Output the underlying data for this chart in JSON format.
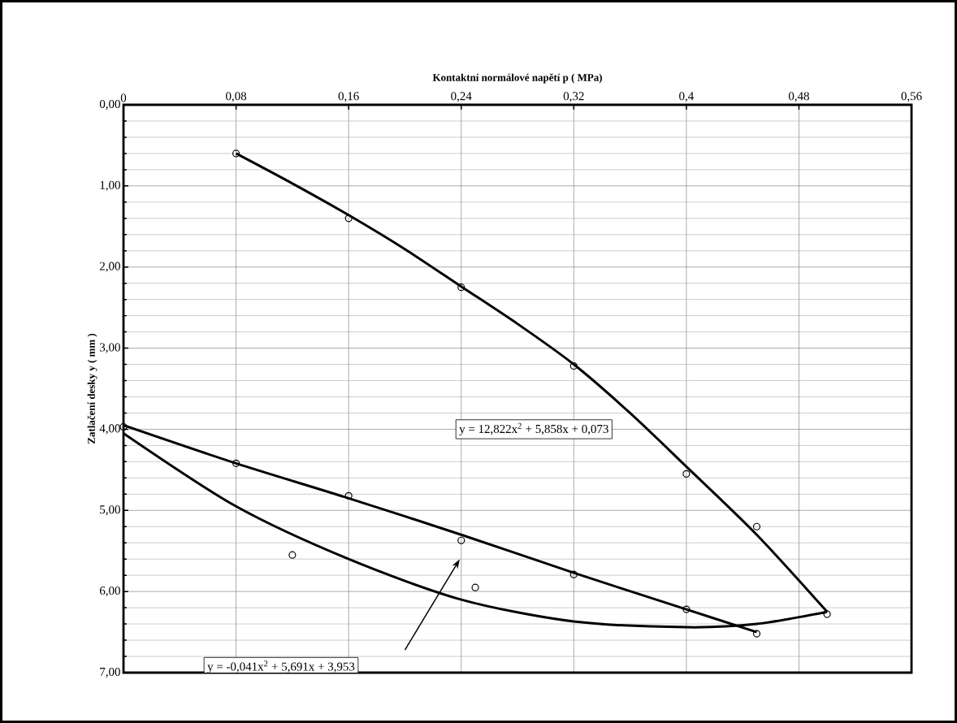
{
  "chart_data": {
    "type": "scatter",
    "xlabel": "Kontaktní normálové napětí p ( MPa)",
    "ylabel": "Zatlačení desky y  ( mm )",
    "xlim": [
      0,
      0.56
    ],
    "ylim": [
      7,
      0
    ],
    "xticks": [
      0,
      {
        "value": 0.08,
        "label": "0,08"
      },
      {
        "value": 0.16,
        "label": "0,16"
      },
      {
        "value": 0.24,
        "label": "0,24"
      },
      {
        "value": 0.32,
        "label": "0,32"
      },
      {
        "value": 0.4,
        "label": "0,4"
      },
      {
        "value": 0.48,
        "label": "0,48"
      },
      {
        "value": 0.56,
        "label": "0,56"
      }
    ],
    "yticks": [
      {
        "value": 0,
        "label": "0,00"
      },
      {
        "value": 1,
        "label": "1,00"
      },
      {
        "value": 2,
        "label": "2,00"
      },
      {
        "value": 3,
        "label": "3,00"
      },
      {
        "value": 4,
        "label": "4,00"
      },
      {
        "value": 5,
        "label": "5,00"
      },
      {
        "value": 6,
        "label": "6,00"
      },
      {
        "value": 7,
        "label": "7,00"
      }
    ],
    "grid": true,
    "series": [
      {
        "marker": "circle",
        "color": "#000000",
        "x": [
          0.08,
          0.16,
          0.24,
          0.32,
          0.4,
          0.45,
          0.5
        ],
        "values": [
          0.6,
          1.4,
          2.25,
          3.22,
          4.55,
          5.2,
          6.28
        ]
      },
      {
        "marker": "circle",
        "color": "#000000",
        "x": [
          0,
          0.08,
          0.16,
          0.24,
          0.32,
          0.4,
          0.45
        ],
        "values": [
          3.97,
          4.42,
          4.82,
          5.37,
          5.79,
          6.22,
          6.52
        ]
      },
      {
        "marker": "circle",
        "color": "#000000",
        "x": [
          0.12,
          0.25
        ],
        "values": [
          5.55,
          5.95
        ]
      },
      {
        "type": "line",
        "marker": "none",
        "color": "#000000",
        "x": [
          0.08,
          0.12,
          0.16,
          0.2,
          0.24,
          0.28,
          0.32,
          0.36,
          0.4,
          0.45,
          0.5
        ],
        "values": [
          0.6,
          0.97,
          1.36,
          1.78,
          2.24,
          2.7,
          3.2,
          3.8,
          4.46,
          5.3,
          6.25
        ]
      },
      {
        "type": "line",
        "marker": "none",
        "color": "#000000",
        "x": [
          0,
          0.08,
          0.16,
          0.24,
          0.32,
          0.4,
          0.45,
          0.5
        ],
        "values": [
          4.05,
          4.95,
          5.6,
          6.1,
          6.37,
          6.44,
          6.4,
          6.25
        ]
      },
      {
        "type": "line",
        "marker": "none",
        "color": "#000000",
        "x": [
          0,
          0.08,
          0.16,
          0.24,
          0.32,
          0.4,
          0.45
        ],
        "values": [
          3.95,
          4.42,
          4.85,
          5.3,
          5.77,
          6.22,
          6.5
        ]
      }
    ],
    "annotations": [
      "y = 12,822x$^{2}$ + 5,858x + 0,073",
      "y = -0,041x$^{2}$ + 5,691x + 3,953"
    ]
  }
}
